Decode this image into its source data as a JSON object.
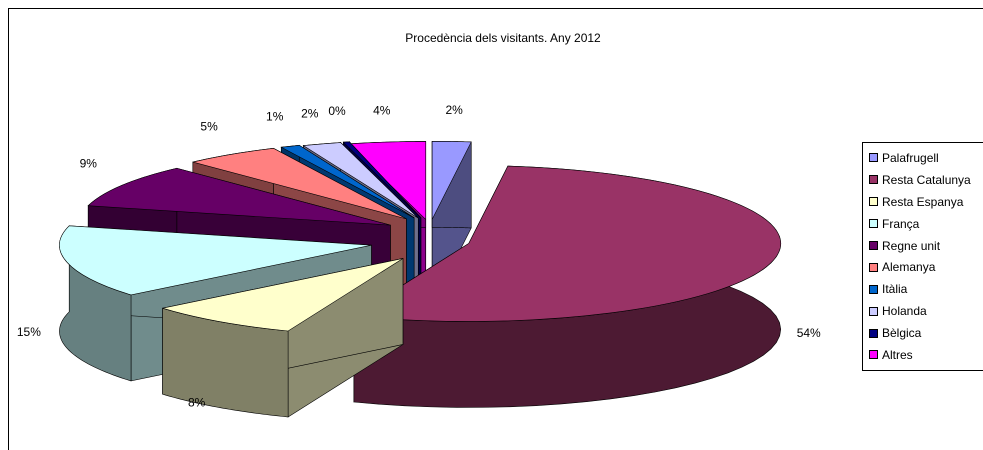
{
  "chart_data": {
    "type": "pie",
    "title": "Procedència dels visitants. Any 2012",
    "categories": [
      "Palafrugell",
      "Resta Catalunya",
      "Resta Espanya",
      "França",
      "Regne unit",
      "Alemanya",
      "Itàlia",
      "Holanda",
      "Bèlgica",
      "Altres"
    ],
    "values": [
      2,
      54,
      8,
      15,
      9,
      5,
      1,
      2,
      0,
      4
    ],
    "labels": [
      "2%",
      "54%",
      "8%",
      "15%",
      "9%",
      "5%",
      "1%",
      "2%",
      "0%",
      "4%"
    ],
    "colors": [
      "#9999FF",
      "#993366",
      "#FFFFCC",
      "#CCFFFF",
      "#660066",
      "#FF8080",
      "#0066CC",
      "#CCCCFF",
      "#000080",
      "#FF00FF"
    ],
    "exploded": true,
    "three_d": true,
    "legend_position": "right"
  }
}
